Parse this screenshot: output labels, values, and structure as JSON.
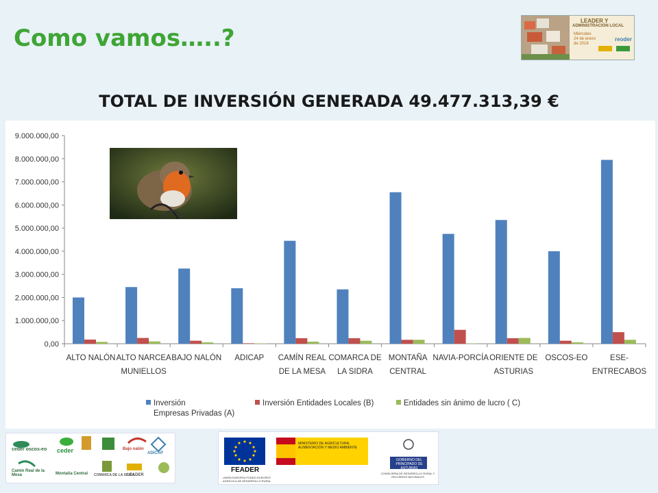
{
  "slide": {
    "title": "Como vamos…..?",
    "chart_heading": "TOTAL DE INVERSIÓN GENERADA 49.477.313,39 €"
  },
  "header_logo": {
    "line1": "LEADER Y",
    "line2": "ADMINISTRACIÓN LOCAL",
    "line3": "Miércoles",
    "line4": "24 de enero",
    "line5": "de 2018",
    "brand": "reoder"
  },
  "footer_left": {
    "logos": [
      "ceder oscos-eo",
      "ceder",
      "ADICAP",
      "Bajo nalón",
      "Camin Real de la Mesa",
      "Montaña Central",
      "COMARCA DE LA SIDRA",
      "LEADER"
    ]
  },
  "footer_right": {
    "feader_label": "FEADER",
    "feader_sub": "UNIÓN EUROPEA FONDO EUROPEO AGRÍCOLA DE DESARROLLO RURAL",
    "ministerio": "MINISTERIO DE AGRICULTURA, ALIMENTACIÓN Y MEDIO AMBIENTE",
    "gobierno": "GOBIERNO DEL PRINCIPADO DE ASTURIAS",
    "consejeria": "CONSEJERÍA DE DESARROLLO RURAL Y RECURSOS NATURALES"
  },
  "colors": {
    "title_green": "#3fa535",
    "series_blue": "#4f81bd",
    "series_red": "#c0504d",
    "series_green": "#9bbb59"
  },
  "chart_data": {
    "type": "bar",
    "title": "TOTAL DE INVERSIÓN GENERADA 49.477.313,39 €",
    "categories": [
      [
        "ALTO NALÓN"
      ],
      [
        "ALTO NARCEA",
        "MUNIELLOS"
      ],
      [
        "BAJO NALÓN"
      ],
      [
        "ADICAP"
      ],
      [
        "CAMÍN REAL",
        "DE LA MESA"
      ],
      [
        "COMARCA DE",
        "LA SIDRA"
      ],
      [
        "MONTAÑA",
        "CENTRAL"
      ],
      [
        "NAVIA-PORCÍA"
      ],
      [
        "ORIENTE DE",
        "ASTURIAS"
      ],
      [
        "OSCOS-EO"
      ],
      [
        "ESE-",
        "ENTRECABOS"
      ]
    ],
    "series": [
      {
        "name": "Inversión Empresas Privadas (A)",
        "legend_lines": [
          "Inversión",
          "Empresas Privadas (A)"
        ],
        "color": "#4f81bd",
        "values": [
          2000000,
          2450000,
          3250000,
          2400000,
          4450000,
          2350000,
          6550000,
          4750000,
          5350000,
          4000000,
          7950000
        ]
      },
      {
        "name": "Inversión Entidades Locales (B)",
        "legend_lines": [
          "Inversión Entidades Locales (B)"
        ],
        "color": "#c0504d",
        "values": [
          180000,
          250000,
          130000,
          20000,
          240000,
          240000,
          170000,
          600000,
          240000,
          130000,
          500000
        ]
      },
      {
        "name": "Entidades sin ánimo de lucro ( C)",
        "legend_lines": [
          "Entidades sin ánimo de lucro ( C)"
        ],
        "color": "#9bbb59",
        "values": [
          80000,
          100000,
          60000,
          15000,
          90000,
          130000,
          170000,
          10000,
          250000,
          60000,
          170000
        ]
      }
    ],
    "ylim": [
      0,
      9000000
    ],
    "yticks": [
      "0,00",
      "1.000.000,00",
      "2.000.000,00",
      "3.000.000,00",
      "4.000.000,00",
      "5.000.000,00",
      "6.000.000,00",
      "7.000.000,00",
      "8.000.000,00",
      "9.000.000,00"
    ],
    "legend_position": "bottom",
    "grid": false
  }
}
